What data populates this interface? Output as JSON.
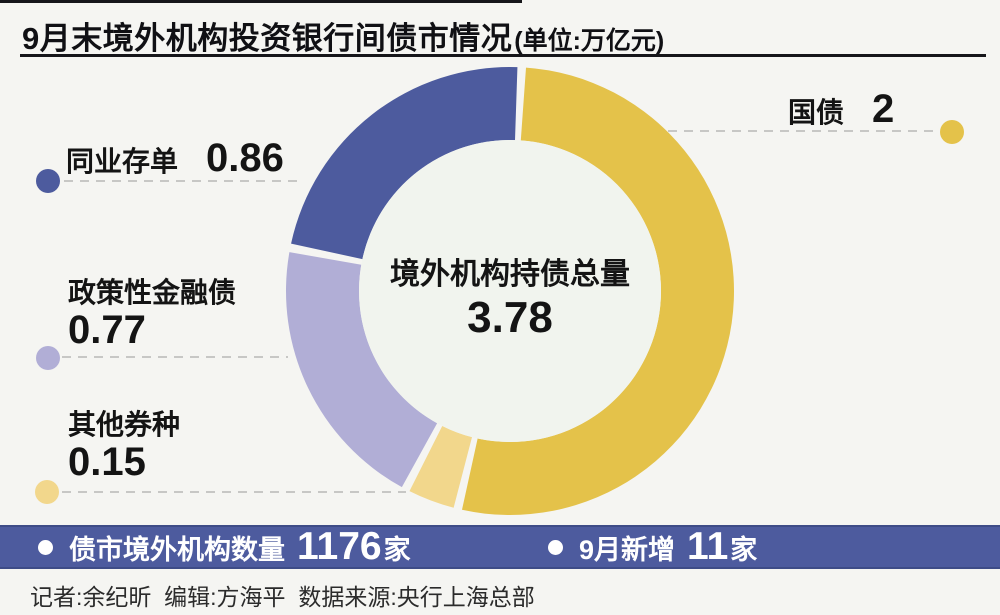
{
  "title": {
    "main": "9月末境外机构投资银行间债市情况",
    "unit": "(单位:万亿元)"
  },
  "chart_data": {
    "type": "pie",
    "subtype": "donut",
    "title": "9月末境外机构投资银行间债市情况",
    "unit": "万亿元",
    "center_label": "境外机构持债总量",
    "center_value": "3.78",
    "total": 3.78,
    "direction": "clockwise",
    "start_angle_deg": 3,
    "gap_deg": 2.2,
    "segments": [
      {
        "id": "guozhai",
        "label": "国债",
        "value": 2,
        "display_value": "2",
        "color": "#e4c24a"
      },
      {
        "id": "qita",
        "label": "其他券种",
        "value": 0.15,
        "display_value": "0.15",
        "color": "#f2d78c"
      },
      {
        "id": "zhengce",
        "label": "政策性金融债",
        "value": 0.77,
        "display_value": "0.77",
        "color": "#b1aed6"
      },
      {
        "id": "tongye",
        "label": "同业存单",
        "value": 0.86,
        "display_value": "0.86",
        "color": "#4d5b9e"
      }
    ]
  },
  "footer_band": {
    "stat1": {
      "label": "债市境外机构数量",
      "value": "1176",
      "suffix": "家"
    },
    "stat2": {
      "label": "9月新增",
      "value": "11",
      "suffix": "家"
    }
  },
  "credits": "记者:余纪昕  编辑:方海平  数据来源:央行上海总部",
  "colors": {
    "background": "#f5f5f2",
    "donut_inner": "#f1f4ee",
    "band": "#4d5b9e",
    "accent_dark_blue": "#4d5b9e",
    "accent_gold": "#e4c24a",
    "accent_light_yellow": "#f2d78c",
    "accent_lavender": "#b1aed6",
    "dash_gray": "#c7c7c5",
    "text_dark": "#141414"
  }
}
